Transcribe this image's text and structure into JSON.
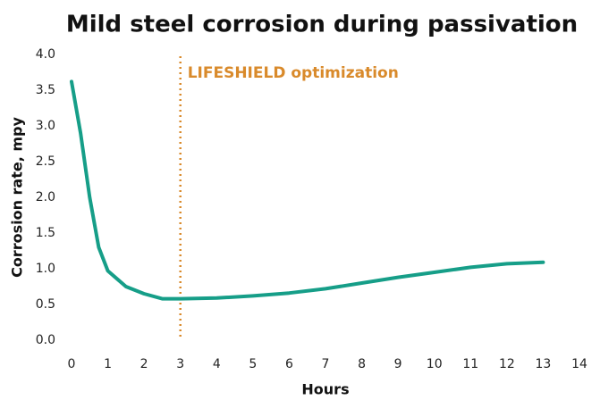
{
  "chart_data": {
    "type": "line",
    "title": "Mild steel corrosion during passivation",
    "x_label": "Hours",
    "y_label": "Corrosion rate, mpy",
    "annotation": {
      "text": "LIFESHIELD optimization",
      "x": 3,
      "color": "#d98a2b"
    },
    "x": [
      0,
      0.25,
      0.5,
      0.75,
      1,
      1.5,
      2,
      2.5,
      3,
      4,
      5,
      6,
      7,
      8,
      9,
      10,
      11,
      12,
      13
    ],
    "series": [
      {
        "name": "Corrosion rate",
        "color": "#169e88",
        "values": [
          3.62,
          2.9,
          2.0,
          1.3,
          0.97,
          0.75,
          0.65,
          0.58,
          0.58,
          0.59,
          0.62,
          0.66,
          0.72,
          0.8,
          0.88,
          0.95,
          1.02,
          1.07,
          1.09
        ]
      }
    ],
    "xlim": [
      0,
      14
    ],
    "xticks": [
      0,
      1,
      2,
      3,
      4,
      5,
      6,
      7,
      8,
      9,
      10,
      11,
      12,
      13,
      14
    ],
    "ylim": [
      0,
      4
    ],
    "yticks": [
      {
        "value": 0,
        "label": "0.0"
      },
      0.5,
      {
        "value": 1,
        "label": "1.0"
      },
      1.5,
      {
        "value": 2,
        "label": "2.0"
      },
      2.5,
      {
        "value": 3,
        "label": "3.0"
      },
      3.5,
      {
        "value": 4,
        "label": "4.0"
      }
    ],
    "grid": false
  }
}
